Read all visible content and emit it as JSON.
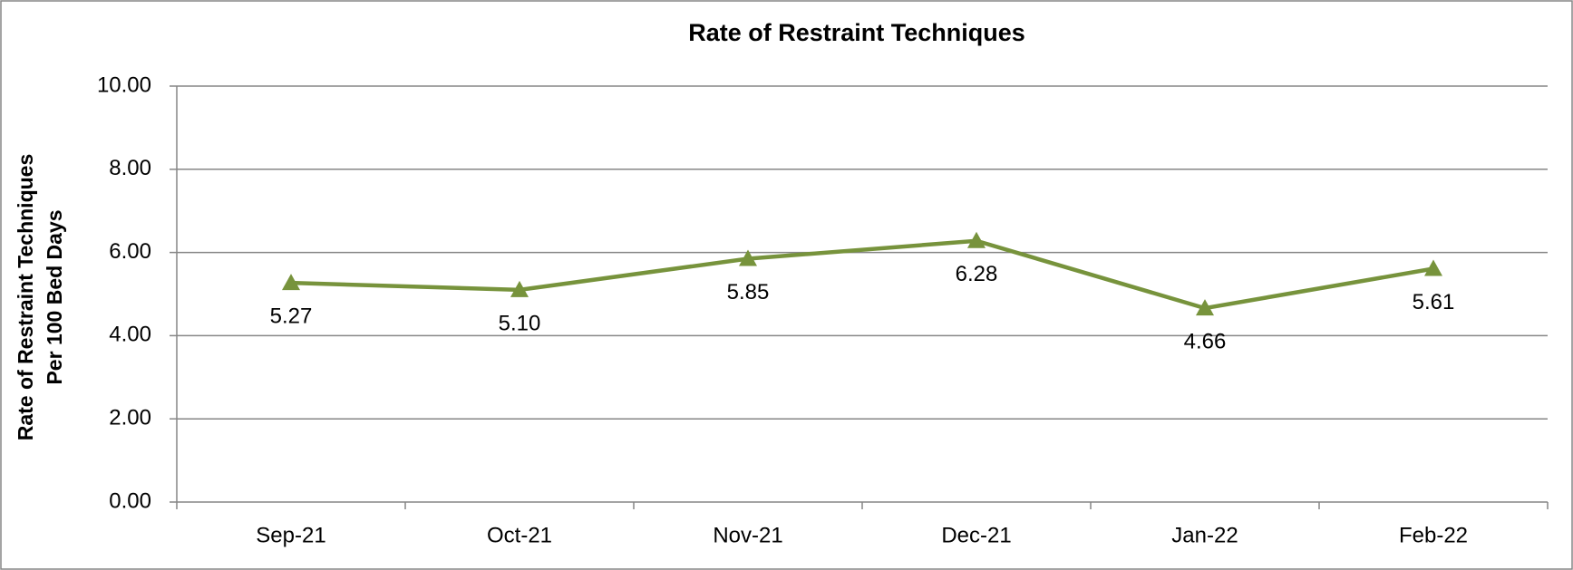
{
  "chart_data": {
    "type": "line",
    "title": "Rate of Restraint Techniques",
    "y_label": [
      "Rate of Restraint Techniques",
      "Per 100 Bed Days"
    ],
    "categories": [
      "Sep-21",
      "Oct-21",
      "Nov-21",
      "Dec-21",
      "Jan-22",
      "Feb-22"
    ],
    "series": [
      {
        "name": "Rate of Restraint Techniques",
        "color": "#77933c",
        "values": [
          5.27,
          5.1,
          5.85,
          6.28,
          4.66,
          5.61
        ],
        "value_labels": [
          "5.27",
          "5.10",
          "5.85",
          "6.28",
          "4.66",
          "5.61"
        ]
      }
    ],
    "ylim": [
      0,
      10
    ],
    "yticks": [
      {
        "value": 0,
        "label": "0.00"
      },
      {
        "value": 2,
        "label": "2.00"
      },
      {
        "value": 4,
        "label": "4.00"
      },
      {
        "value": 6,
        "label": "6.00"
      },
      {
        "value": 8,
        "label": "8.00"
      },
      {
        "value": 10,
        "label": "10.00"
      }
    ],
    "grid": true
  }
}
